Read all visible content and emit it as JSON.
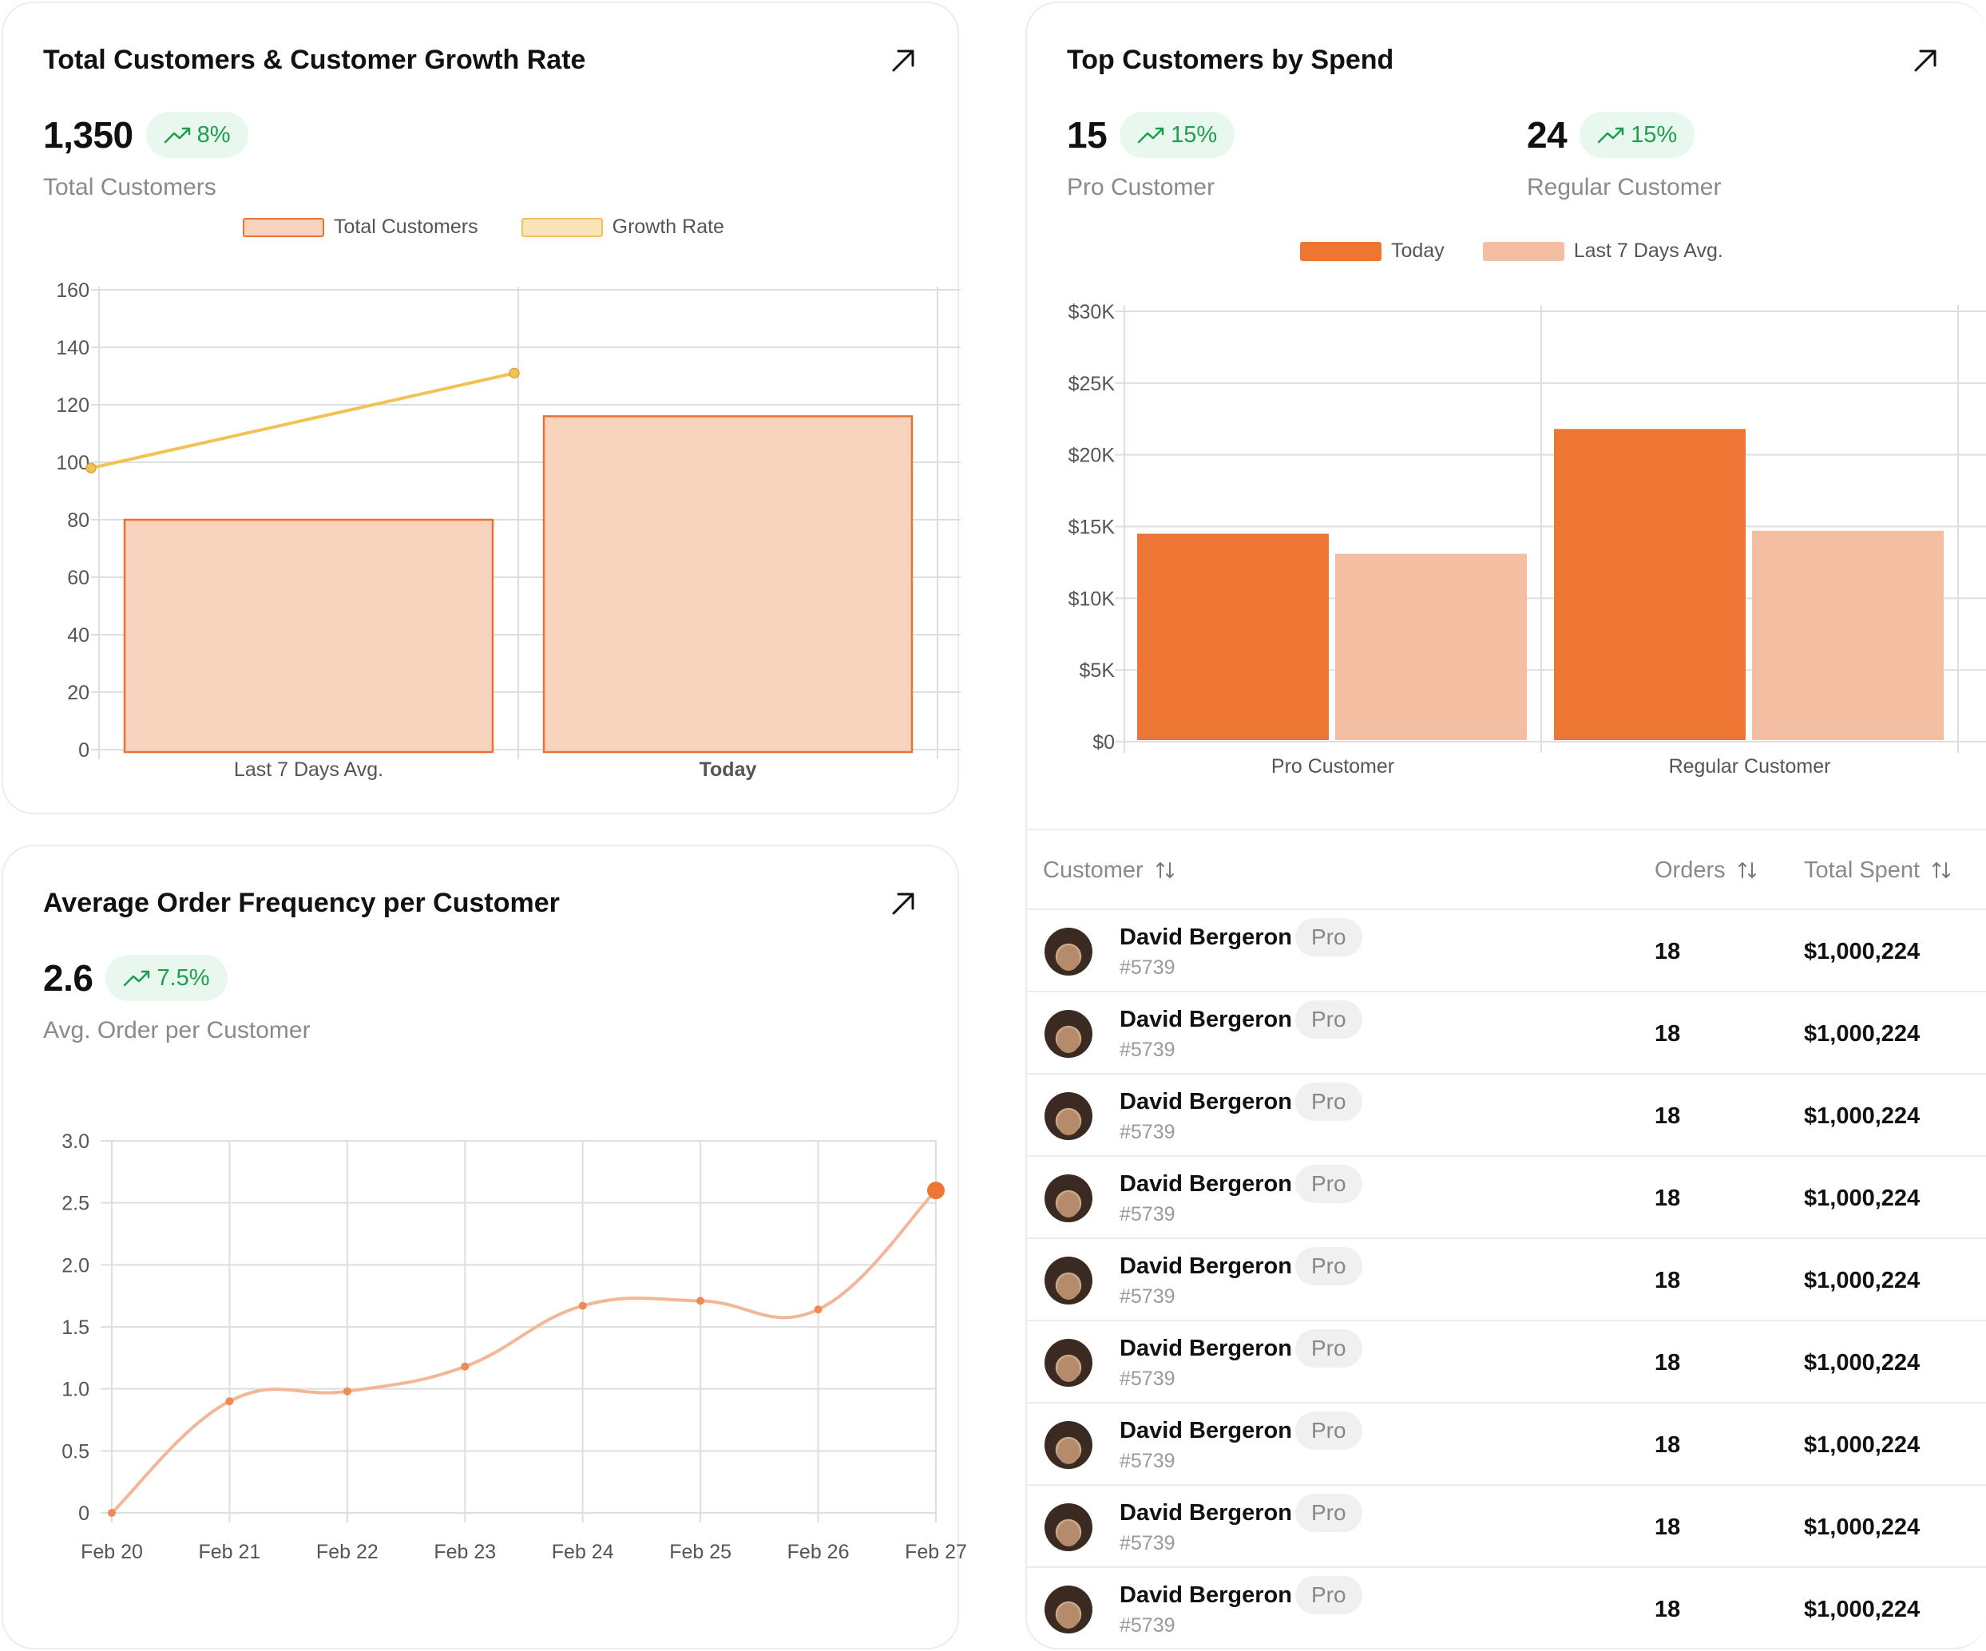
{
  "colors": {
    "bar_fill": "#f8d3bd",
    "bar_stroke": "#ea7233",
    "growth_line": "#f2c255",
    "growth_swatch": "#fbe5b8",
    "today": "#ee7634",
    "last7": "#f4bea2",
    "freq_line": "#f3b798",
    "freq_point": "#ee7634",
    "badge_text": "#1f9d4f"
  },
  "customers_card": {
    "title": "Total Customers & Customer Growth Rate",
    "value": "1,350",
    "badge": "8%",
    "label": "Total Customers",
    "legend": [
      "Total Customers",
      "Growth Rate"
    ]
  },
  "spend_card": {
    "title": "Top Customers by Spend",
    "metrics": [
      {
        "value": "15",
        "badge": "15%",
        "label": "Pro Customer"
      },
      {
        "value": "24",
        "badge": "15%",
        "label": "Regular Customer"
      }
    ],
    "legend": [
      "Today",
      "Last 7 Days Avg."
    ]
  },
  "frequency_card": {
    "title": "Average Order Frequency per Customer",
    "value": "2.6",
    "badge": "7.5%",
    "label": "Avg. Order per Customer"
  },
  "table": {
    "headers": {
      "customer": "Customer",
      "orders": "Orders",
      "total_spent": "Total Spent"
    },
    "rows": [
      {
        "name": "David Bergeron",
        "tag": "Pro",
        "id": "#5739",
        "orders": "18",
        "spent": "$1,000,224"
      },
      {
        "name": "David Bergeron",
        "tag": "Pro",
        "id": "#5739",
        "orders": "18",
        "spent": "$1,000,224"
      },
      {
        "name": "David Bergeron",
        "tag": "Pro",
        "id": "#5739",
        "orders": "18",
        "spent": "$1,000,224"
      },
      {
        "name": "David Bergeron",
        "tag": "Pro",
        "id": "#5739",
        "orders": "18",
        "spent": "$1,000,224"
      },
      {
        "name": "David Bergeron",
        "tag": "Pro",
        "id": "#5739",
        "orders": "18",
        "spent": "$1,000,224"
      },
      {
        "name": "David Bergeron",
        "tag": "Pro",
        "id": "#5739",
        "orders": "18",
        "spent": "$1,000,224"
      },
      {
        "name": "David Bergeron",
        "tag": "Pro",
        "id": "#5739",
        "orders": "18",
        "spent": "$1,000,224"
      },
      {
        "name": "David Bergeron",
        "tag": "Pro",
        "id": "#5739",
        "orders": "18",
        "spent": "$1,000,224"
      },
      {
        "name": "David Bergeron",
        "tag": "Pro",
        "id": "#5739",
        "orders": "18",
        "spent": "$1,000,224"
      }
    ]
  },
  "chart_data": [
    {
      "type": "bar",
      "title": "Total Customers & Customer Growth Rate",
      "categories": [
        "Last 7 Days Avg.",
        "Today"
      ],
      "series": [
        {
          "name": "Total Customers",
          "type": "bar",
          "values": [
            80,
            116
          ]
        },
        {
          "name": "Growth Rate",
          "type": "line",
          "values": [
            98,
            131
          ]
        }
      ],
      "ylim": [
        0,
        160
      ],
      "yticks": [
        0,
        20,
        40,
        60,
        80,
        100,
        120,
        140,
        160
      ],
      "ytick_labels": [
        "0",
        "20",
        "40",
        "60",
        "80",
        "100",
        "120",
        "140",
        "160"
      ],
      "grid": true,
      "legend": "top-center"
    },
    {
      "type": "bar",
      "title": "Top Customers by Spend",
      "categories": [
        "Pro Customer",
        "Regular Customer"
      ],
      "series": [
        {
          "name": "Today",
          "values": [
            14500,
            21800
          ]
        },
        {
          "name": "Last 7 Days Avg.",
          "values": [
            13100,
            14700
          ]
        }
      ],
      "ylim": [
        0,
        30000
      ],
      "yticks": [
        0,
        5000,
        10000,
        15000,
        20000,
        25000,
        30000
      ],
      "ytick_labels": [
        "$0",
        "$5K",
        "$10K",
        "$15K",
        "$20K",
        "$25K",
        "$30K"
      ],
      "grid": true,
      "legend": "top-center"
    },
    {
      "type": "line",
      "title": "Average Order Frequency per Customer",
      "categories": [
        "Feb 20",
        "Feb 21",
        "Feb 22",
        "Feb 23",
        "Feb 24",
        "Feb 25",
        "Feb 26",
        "Feb 27"
      ],
      "values": [
        0.0,
        0.9,
        0.98,
        1.18,
        1.67,
        1.71,
        1.64,
        2.6
      ],
      "ylim": [
        0,
        3.0
      ],
      "yticks": [
        0,
        0.5,
        1.0,
        1.5,
        2.0,
        2.5,
        3.0
      ],
      "ytick_labels": [
        "0",
        "0.5",
        "1.0",
        "1.5",
        "2.0",
        "2.5",
        "3.0"
      ],
      "grid": true
    }
  ]
}
